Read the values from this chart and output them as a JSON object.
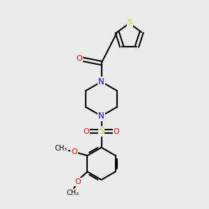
{
  "background_color": "#ebebeb",
  "bond_color": "#000000",
  "N_color": "#0000ff",
  "O_color": "#ff0000",
  "S_color": "#cccc00",
  "figsize": [
    3.0,
    3.0
  ],
  "dpi": 100,
  "xlim": [
    0,
    10
  ],
  "ylim": [
    0,
    10
  ]
}
